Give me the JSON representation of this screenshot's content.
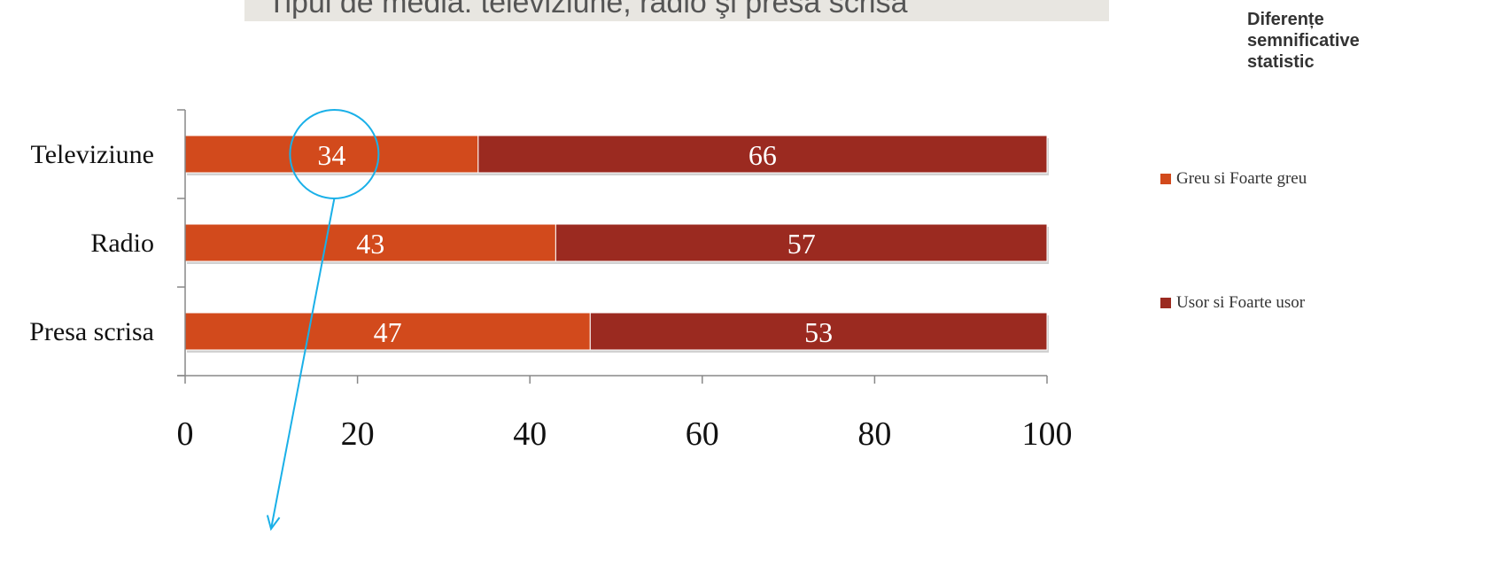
{
  "title": "Tipul de media: televiziune, radio şi presa scrisa",
  "note": "Diferențe semnificative statistic",
  "chart_data": {
    "type": "bar",
    "orientation": "horizontal",
    "stacked": true,
    "categories": [
      "Televiziune",
      "Radio",
      "Presa scrisa"
    ],
    "series": [
      {
        "name": "Greu si Foarte greu",
        "values": [
          34,
          43,
          47
        ],
        "color": "#d24a1c"
      },
      {
        "name": "Usor si Foarte usor",
        "values": [
          66,
          57,
          53
        ],
        "color": "#9b2a20"
      }
    ],
    "xlim": [
      0,
      100
    ],
    "xticks": [
      0,
      20,
      40,
      60,
      80,
      100
    ],
    "grid": false,
    "legend": "right",
    "annotation": {
      "target_category": "Televiziune",
      "target_series": "Greu si Foarte greu",
      "color": "#1ab0e8"
    }
  }
}
